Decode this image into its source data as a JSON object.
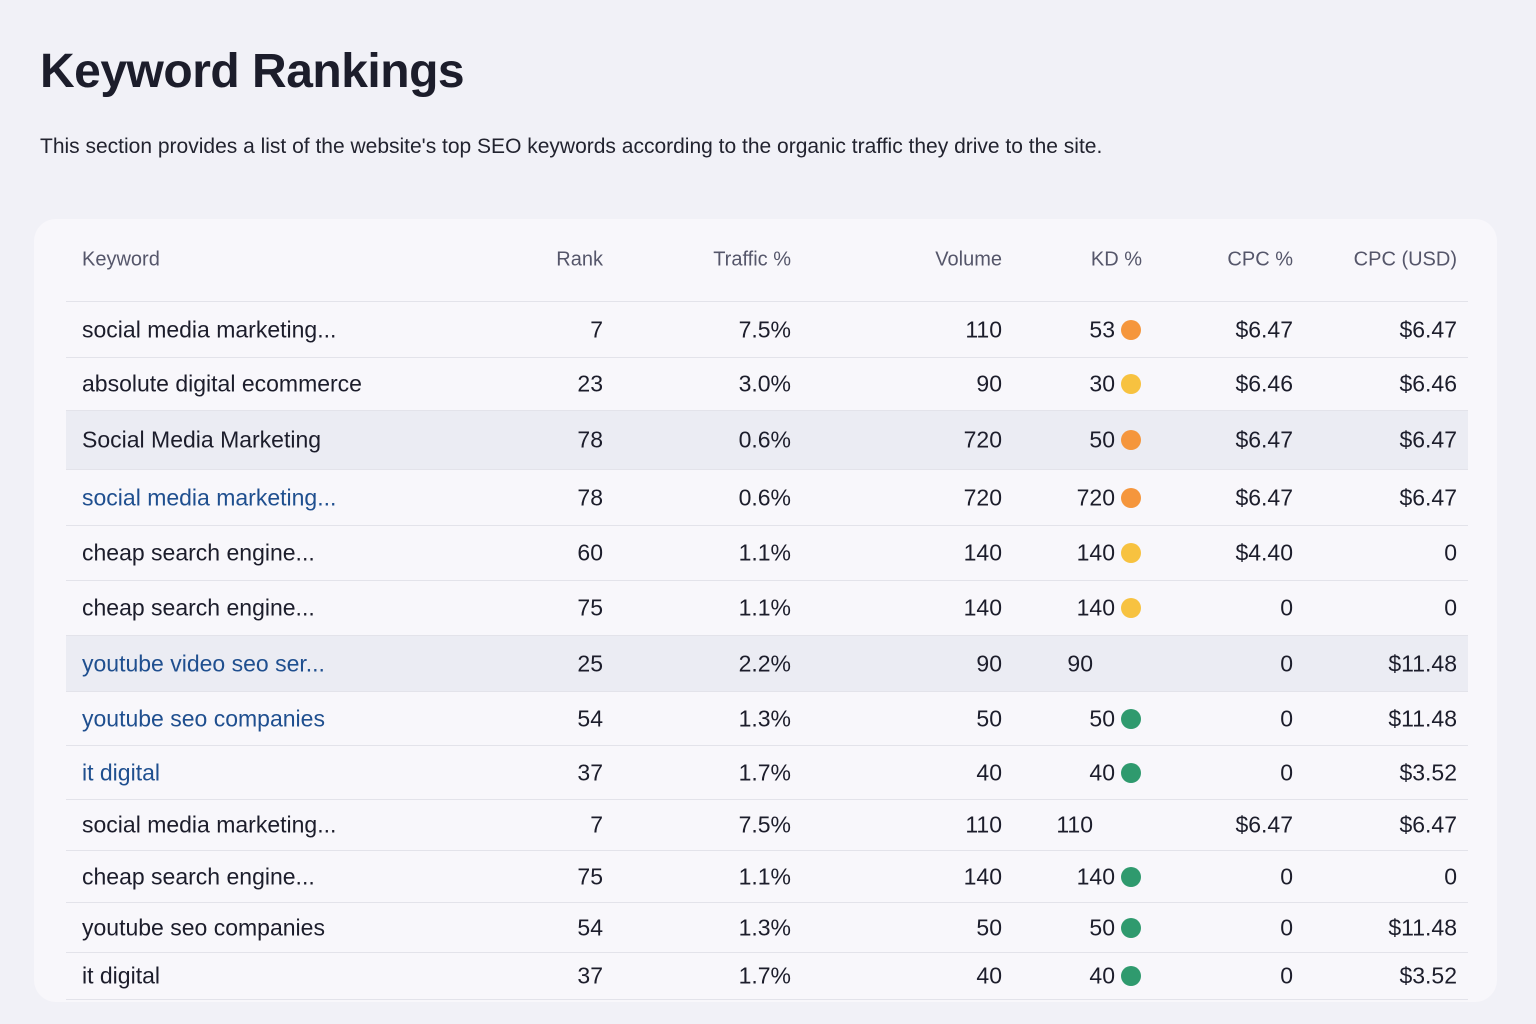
{
  "header": {
    "title": "Keyword Rankings",
    "description": "This section provides a list of the website's top SEO keywords according to the organic traffic they drive to the site."
  },
  "table": {
    "columns": [
      "Keyword",
      "Rank",
      "Traffic %",
      "Volume",
      "KD %",
      "CPC %",
      "CPC (USD)"
    ],
    "rows": [
      {
        "cells": [
          "social media marketing...",
          "7",
          "7.5%",
          "110",
          "53",
          "$6.47",
          "$6.47"
        ],
        "dot": "#f5963c",
        "highlight": false,
        "link": false
      },
      {
        "cells": [
          "absolute digital ecommerce",
          "23",
          "3.0%",
          "90",
          "30",
          "$6.46",
          "$6.46"
        ],
        "dot": "#f7c240",
        "highlight": false,
        "link": false
      },
      {
        "cells": [
          "Social Media Marketing",
          "78",
          "0.6%",
          "720",
          "50",
          "$6.47",
          "$6.47"
        ],
        "dot": "#f5963c",
        "highlight": true,
        "link": false
      },
      {
        "cells": [
          "social media marketing...",
          "78",
          "0.6%",
          "720",
          "720",
          "$6.47",
          "$6.47"
        ],
        "dot": "#f5963c",
        "highlight": false,
        "link": true
      },
      {
        "cells": [
          "cheap search engine...",
          "60",
          "1.1%",
          "140",
          "140",
          "$4.40",
          "0"
        ],
        "dot": "#f7c240",
        "highlight": false,
        "link": false
      },
      {
        "cells": [
          "cheap search engine...",
          "75",
          "1.1%",
          "140",
          "140",
          "0",
          "0"
        ],
        "dot": "#f7c240",
        "highlight": false,
        "link": false
      },
      {
        "cells": [
          "youtube video seo ser...",
          "25",
          "2.2%",
          "90",
          "90",
          "0",
          "$11.48"
        ],
        "dot": null,
        "highlight": true,
        "link": true
      },
      {
        "cells": [
          "youtube seo companies",
          "54",
          "1.3%",
          "50",
          "50",
          "0",
          "$11.48"
        ],
        "dot": "#2f9a6e",
        "highlight": false,
        "link": true
      },
      {
        "cells": [
          "it digital",
          "37",
          "1.7%",
          "40",
          "40",
          "0",
          "$3.52"
        ],
        "dot": "#2f9a6e",
        "highlight": false,
        "link": true
      },
      {
        "cells": [
          "social media marketing...",
          "7",
          "7.5%",
          "110",
          "110",
          "$6.47",
          "$6.47"
        ],
        "dot": null,
        "highlight": false,
        "link": false
      },
      {
        "cells": [
          "cheap search engine...",
          "75",
          "1.1%",
          "140",
          "140",
          "0",
          "0"
        ],
        "dot": "#2f9a6e",
        "highlight": false,
        "link": false
      },
      {
        "cells": [
          "youtube seo companies",
          "54",
          "1.3%",
          "50",
          "50",
          "0",
          "$11.48"
        ],
        "dot": "#2f9a6e",
        "highlight": false,
        "link": false
      },
      {
        "cells": [
          "it digital",
          "37",
          "1.7%",
          "40",
          "40",
          "0",
          "$3.52"
        ],
        "dot": "#2f9a6e",
        "highlight": false,
        "link": false
      }
    ]
  }
}
